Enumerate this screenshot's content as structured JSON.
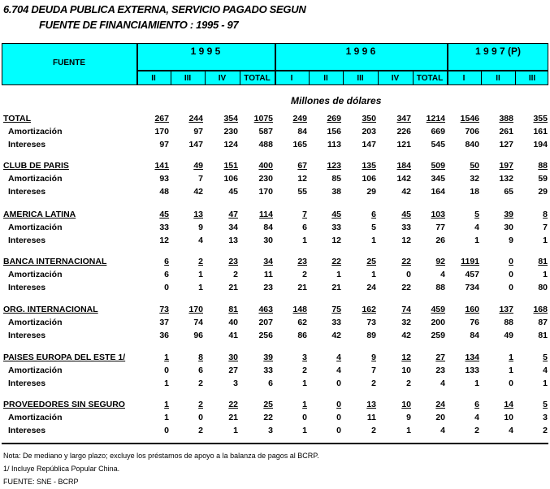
{
  "title": {
    "line1": "6.704   DEUDA PUBLICA EXTERNA, SERVICIO PAGADO SEGUN",
    "line2": "FUENTE DE FINANCIAMIENTO : 1995 - 97"
  },
  "header": {
    "fuente": "FUENTE",
    "years": [
      "1 9 9 5",
      "1 9 9 6",
      "1 9 9 7 (P)"
    ],
    "columns": [
      "II",
      "III",
      "IV",
      "TOTAL",
      "I",
      "II",
      "III",
      "IV",
      "TOTAL",
      "I",
      "II",
      "III"
    ],
    "color": "#00ffff"
  },
  "unit": "Millones de dólares",
  "groups": [
    {
      "name": "TOTAL",
      "total": [
        267,
        244,
        354,
        1075,
        249,
        269,
        350,
        347,
        1214,
        1546,
        388,
        355
      ],
      "amort": [
        170,
        97,
        230,
        587,
        84,
        156,
        203,
        226,
        669,
        706,
        261,
        161
      ],
      "int": [
        97,
        147,
        124,
        488,
        165,
        113,
        147,
        121,
        545,
        840,
        127,
        194
      ]
    },
    {
      "name": "CLUB DE PARIS",
      "total": [
        141,
        49,
        151,
        400,
        67,
        123,
        135,
        184,
        509,
        50,
        197,
        88
      ],
      "amort": [
        93,
        7,
        106,
        230,
        12,
        85,
        106,
        142,
        345,
        32,
        132,
        59
      ],
      "int": [
        48,
        42,
        45,
        170,
        55,
        38,
        29,
        42,
        164,
        18,
        65,
        29
      ]
    },
    {
      "name": "AMERICA LATINA",
      "total": [
        45,
        13,
        47,
        114,
        7,
        45,
        6,
        45,
        103,
        5,
        39,
        8
      ],
      "amort": [
        33,
        9,
        34,
        84,
        6,
        33,
        5,
        33,
        77,
        4,
        30,
        7
      ],
      "int": [
        12,
        4,
        13,
        30,
        1,
        12,
        1,
        12,
        26,
        1,
        9,
        1
      ]
    },
    {
      "name": "BANCA INTERNACIONAL",
      "total": [
        6,
        2,
        23,
        34,
        23,
        22,
        25,
        22,
        92,
        1191,
        0,
        81
      ],
      "amort": [
        6,
        1,
        2,
        11,
        2,
        1,
        1,
        0,
        4,
        457,
        0,
        1
      ],
      "int": [
        0,
        1,
        21,
        23,
        21,
        21,
        24,
        22,
        88,
        734,
        0,
        80
      ]
    },
    {
      "name": "ORG. INTERNACIONAL",
      "total": [
        73,
        170,
        81,
        463,
        148,
        75,
        162,
        74,
        459,
        160,
        137,
        168
      ],
      "amort": [
        37,
        74,
        40,
        207,
        62,
        33,
        73,
        32,
        200,
        76,
        88,
        87
      ],
      "int": [
        36,
        96,
        41,
        256,
        86,
        42,
        89,
        42,
        259,
        84,
        49,
        81
      ]
    },
    {
      "name": "PAISES EUROPA DEL ESTE  1/",
      "total": [
        1,
        8,
        30,
        39,
        3,
        4,
        9,
        12,
        27,
        134,
        1,
        5
      ],
      "amort": [
        0,
        6,
        27,
        33,
        2,
        4,
        7,
        10,
        23,
        133,
        1,
        4
      ],
      "int": [
        1,
        2,
        3,
        6,
        1,
        0,
        2,
        2,
        4,
        1,
        0,
        1
      ]
    },
    {
      "name": "PROVEEDORES SIN SEGURO",
      "total": [
        1,
        2,
        22,
        25,
        1,
        0,
        13,
        10,
        24,
        6,
        14,
        5
      ],
      "amort": [
        1,
        0,
        21,
        22,
        0,
        0,
        11,
        9,
        20,
        4,
        10,
        3
      ],
      "int": [
        0,
        2,
        1,
        3,
        1,
        0,
        2,
        1,
        4,
        2,
        4,
        2
      ]
    }
  ],
  "row_labels": {
    "amort": "Amortización",
    "int": "Intereses"
  },
  "notes": [
    "Nota: De mediano y largo plazo; excluye los préstamos de apoyo a la balanza de pagos al BCRP.",
    "1/ Incluye República Popular China.",
    "FUENTE: SNE - BCRP"
  ]
}
